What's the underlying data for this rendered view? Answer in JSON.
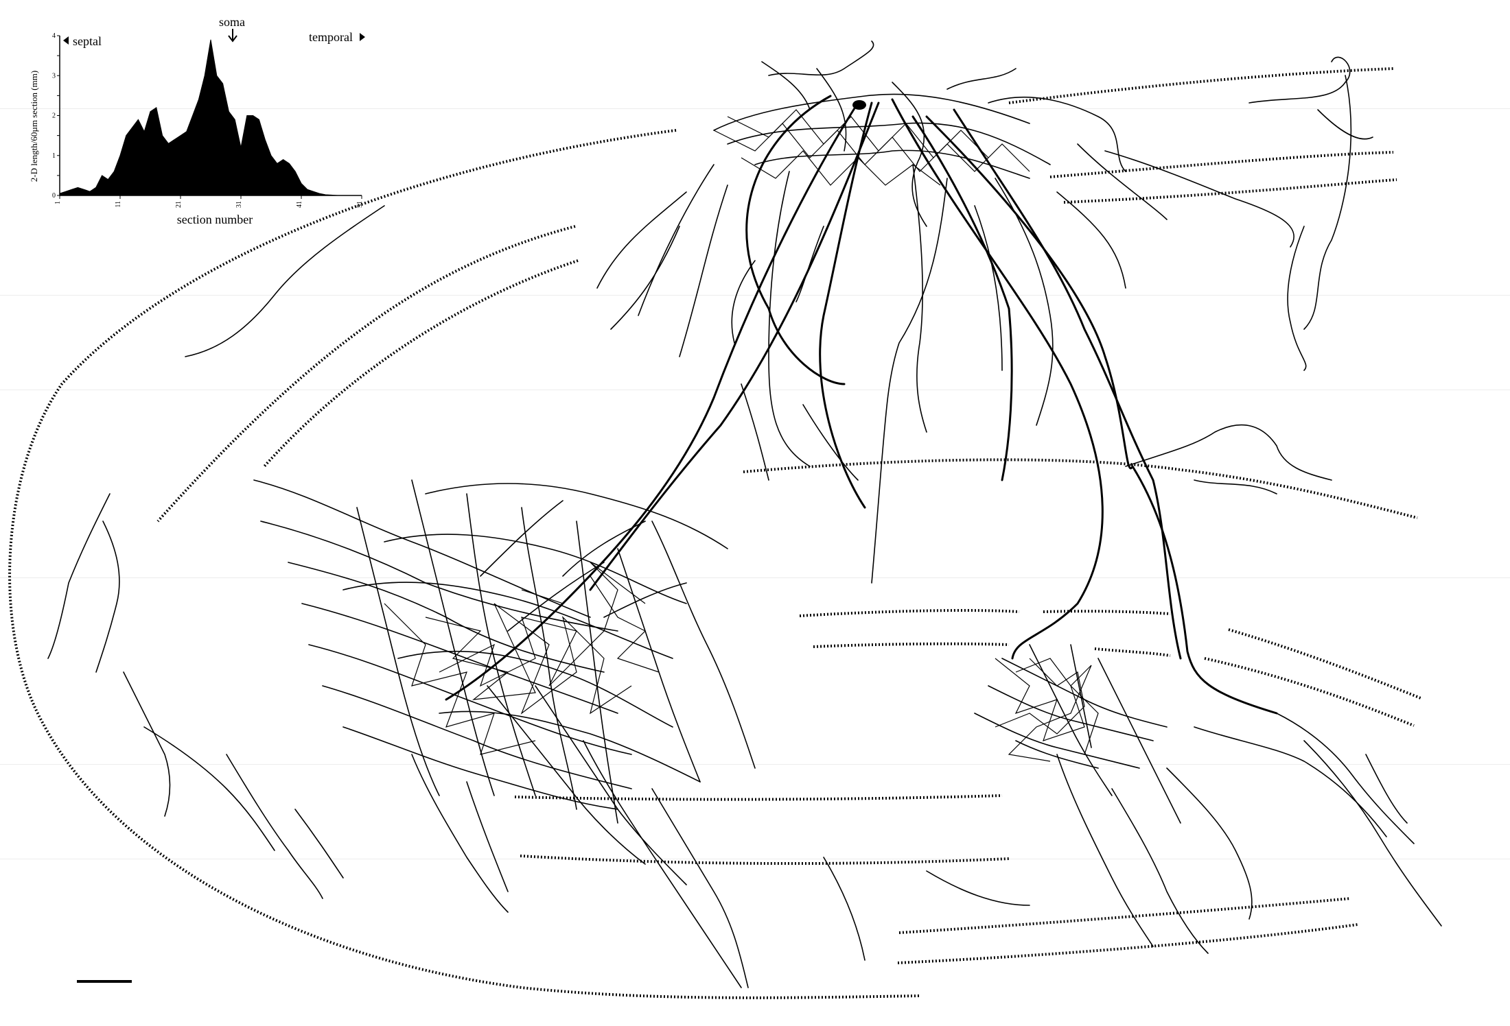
{
  "inset": {
    "septal_label": "septal",
    "temporal_label": "temporal",
    "soma_label": "soma",
    "ylabel": "2-D length/60µm section (mm)",
    "xlabel": "section number"
  },
  "chart_data": {
    "type": "area",
    "xlabel": "section number",
    "ylabel": "2-D length/60µm section (mm)",
    "xlim": [
      1,
      51
    ],
    "ylim": [
      0,
      4
    ],
    "x_ticks": [
      "1",
      "11",
      "21",
      "31",
      "41",
      "51"
    ],
    "y_ticks": [
      "0",
      "0.5",
      "1",
      "1.5",
      "2",
      "2.5",
      "3",
      "3.5",
      "4"
    ],
    "annotations": [
      "septal",
      "soma",
      "temporal"
    ],
    "x": [
      1,
      2,
      3,
      4,
      5,
      6,
      7,
      8,
      9,
      10,
      11,
      12,
      13,
      14,
      15,
      16,
      17,
      18,
      19,
      20,
      21,
      22,
      23,
      24,
      25,
      26,
      27,
      28,
      29,
      30,
      31,
      32,
      33,
      34,
      35,
      36,
      37,
      38,
      39,
      40,
      41,
      42,
      43,
      44,
      45,
      46,
      47,
      48,
      49,
      50,
      51
    ],
    "values": [
      0.05,
      0.1,
      0.15,
      0.2,
      0.15,
      0.1,
      0.2,
      0.5,
      0.4,
      0.6,
      1.0,
      1.5,
      1.7,
      1.9,
      1.6,
      2.1,
      2.2,
      1.5,
      1.3,
      1.4,
      1.5,
      1.6,
      2.0,
      2.4,
      3.0,
      3.9,
      3.0,
      2.8,
      2.1,
      1.9,
      1.2,
      2.0,
      2.0,
      1.9,
      1.4,
      1.0,
      0.8,
      0.9,
      0.8,
      0.6,
      0.3,
      0.15,
      0.1,
      0.05,
      0.02,
      0.01,
      0.0,
      0.0,
      0.0,
      0.0,
      0.0
    ]
  }
}
